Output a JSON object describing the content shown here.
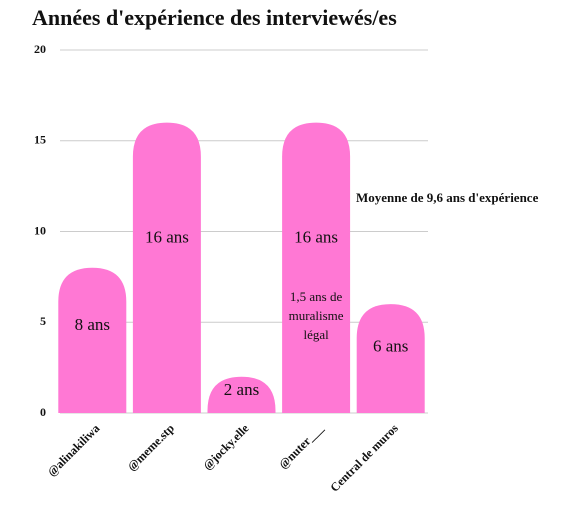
{
  "chart_data": {
    "type": "bar",
    "title": "Années d'expérience des interviewés/es",
    "categories": [
      "@alinakiliwa",
      "@meme.stp",
      "@jocky.elle",
      "@nuter___",
      "Central de muros"
    ],
    "values": [
      8,
      16,
      2,
      16,
      6
    ],
    "value_labels": [
      "8 ans",
      "16 ans",
      "2 ans",
      "16 ans",
      "6 ans"
    ],
    "color": "#ff78d4",
    "ylim": [
      0,
      20
    ],
    "yticks": [
      0,
      5,
      10,
      15,
      20
    ],
    "grid": true,
    "annotations": [
      {
        "lines": [
          "1,5 ans de",
          "muralisme",
          "légal"
        ],
        "category": 3
      },
      {
        "lines": [
          "Moyenne de 9,6 ans d'expérience"
        ]
      }
    ]
  }
}
